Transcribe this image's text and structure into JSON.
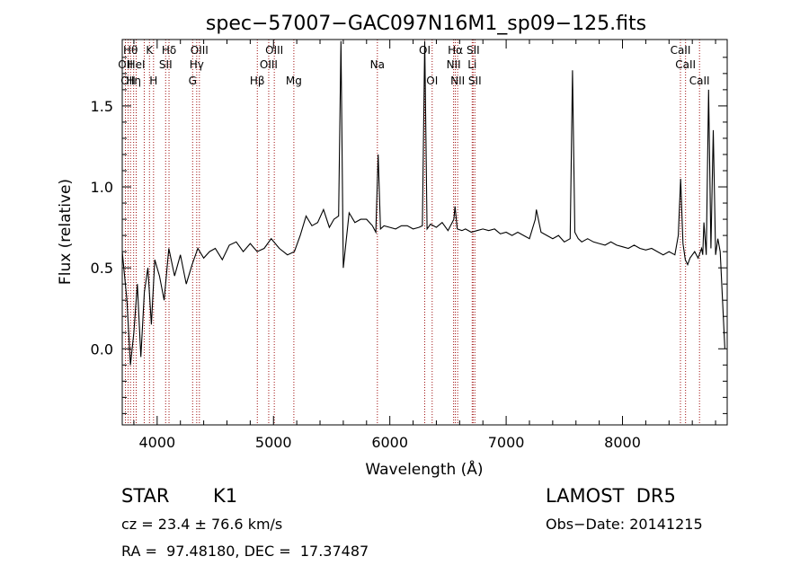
{
  "chart_data": {
    "type": "line",
    "title": "spec−57007−GAC097N16M1_sp09−125.fits",
    "xlabel": "Wavelength (Å)",
    "ylabel": "Flux (relative)",
    "xlim": [
      3700,
      8900
    ],
    "ylim": [
      -0.47,
      1.91
    ],
    "xticks": [
      4000,
      5000,
      6000,
      7000,
      8000
    ],
    "yticks": [
      0.0,
      0.5,
      1.0,
      1.5
    ],
    "ytick_labels": [
      "0.0",
      "0.5",
      "1.0",
      "1.5"
    ],
    "grid": false,
    "series": [
      {
        "color": "#000000",
        "x": [
          3700,
          3740,
          3770,
          3800,
          3830,
          3860,
          3890,
          3920,
          3950,
          3980,
          4020,
          4060,
          4100,
          4150,
          4200,
          4250,
          4300,
          4350,
          4400,
          4450,
          4500,
          4560,
          4620,
          4680,
          4740,
          4800,
          4860,
          4920,
          4980,
          5050,
          5120,
          5180,
          5230,
          5280,
          5330,
          5380,
          5430,
          5480,
          5520,
          5560,
          5580,
          5600,
          5650,
          5700,
          5750,
          5800,
          5850,
          5880,
          5900,
          5920,
          5950,
          6000,
          6050,
          6100,
          6150,
          6200,
          6250,
          6280,
          6300,
          6320,
          6350,
          6400,
          6450,
          6500,
          6550,
          6560,
          6580,
          6620,
          6650,
          6700,
          6750,
          6800,
          6850,
          6900,
          6950,
          7000,
          7050,
          7100,
          7150,
          7200,
          7250,
          7260,
          7300,
          7350,
          7400,
          7450,
          7500,
          7550,
          7570,
          7590,
          7620,
          7650,
          7700,
          7750,
          7800,
          7850,
          7900,
          7950,
          8000,
          8050,
          8100,
          8150,
          8200,
          8250,
          8300,
          8350,
          8400,
          8450,
          8480,
          8500,
          8520,
          8540,
          8560,
          8580,
          8600,
          8620,
          8650,
          8680,
          8690,
          8700,
          8720,
          8740,
          8760,
          8780,
          8800,
          8820,
          8840,
          8860,
          8880
        ],
        "y": [
          0.6,
          0.3,
          -0.1,
          0.1,
          0.4,
          -0.05,
          0.35,
          0.5,
          0.15,
          0.55,
          0.45,
          0.3,
          0.62,
          0.45,
          0.58,
          0.4,
          0.52,
          0.62,
          0.56,
          0.6,
          0.62,
          0.55,
          0.64,
          0.66,
          0.6,
          0.65,
          0.6,
          0.62,
          0.68,
          0.62,
          0.58,
          0.6,
          0.7,
          0.82,
          0.76,
          0.78,
          0.86,
          0.75,
          0.8,
          0.82,
          1.9,
          0.5,
          0.84,
          0.78,
          0.8,
          0.8,
          0.76,
          0.72,
          1.2,
          0.74,
          0.76,
          0.75,
          0.74,
          0.76,
          0.76,
          0.74,
          0.75,
          0.76,
          1.9,
          0.74,
          0.77,
          0.75,
          0.78,
          0.73,
          0.8,
          0.88,
          0.74,
          0.73,
          0.74,
          0.72,
          0.73,
          0.74,
          0.73,
          0.74,
          0.71,
          0.72,
          0.7,
          0.72,
          0.7,
          0.68,
          0.8,
          0.86,
          0.72,
          0.7,
          0.68,
          0.7,
          0.66,
          0.68,
          1.72,
          0.72,
          0.68,
          0.66,
          0.68,
          0.66,
          0.65,
          0.64,
          0.66,
          0.64,
          0.63,
          0.62,
          0.64,
          0.62,
          0.61,
          0.62,
          0.6,
          0.58,
          0.6,
          0.58,
          0.7,
          1.05,
          0.65,
          0.55,
          0.52,
          0.56,
          0.58,
          0.6,
          0.56,
          0.62,
          0.58,
          0.78,
          0.58,
          1.6,
          0.62,
          1.35,
          0.58,
          0.68,
          0.6,
          0.3,
          0.0
        ]
      }
    ],
    "lines": [
      {
        "x": 3727,
        "top": "OII",
        "row": 2
      },
      {
        "x": 3750,
        "top": "OII",
        "row": 3
      },
      {
        "x": 3771,
        "top": "Hθ",
        "row": 1
      },
      {
        "x": 3798,
        "top": "Hη",
        "row": 3
      },
      {
        "x": 3820,
        "top": "HeI",
        "row": 2
      },
      {
        "x": 3889,
        "top": "",
        "row": 0
      },
      {
        "x": 3934,
        "top": "K",
        "row": 1
      },
      {
        "x": 3969,
        "top": "H",
        "row": 3
      },
      {
        "x": 4073,
        "top": "SII",
        "row": 2
      },
      {
        "x": 4102,
        "top": "Hδ",
        "row": 1
      },
      {
        "x": 4305,
        "top": "G",
        "row": 3
      },
      {
        "x": 4340,
        "top": "Hγ",
        "row": 2
      },
      {
        "x": 4363,
        "top": "OIII",
        "row": 1
      },
      {
        "x": 4861,
        "top": "Hβ",
        "row": 3
      },
      {
        "x": 4959,
        "top": "OIII",
        "row": 2
      },
      {
        "x": 5007,
        "top": "OIII",
        "row": 1
      },
      {
        "x": 5175,
        "top": "Mg",
        "row": 3
      },
      {
        "x": 5893,
        "top": "Na",
        "row": 2
      },
      {
        "x": 6300,
        "top": "OI",
        "row": 1
      },
      {
        "x": 6364,
        "top": "OI",
        "row": 3
      },
      {
        "x": 6548,
        "top": "NII",
        "row": 2
      },
      {
        "x": 6563,
        "top": "Hα",
        "row": 1
      },
      {
        "x": 6583,
        "top": "NII",
        "row": 3
      },
      {
        "x": 6708,
        "top": "Li",
        "row": 2
      },
      {
        "x": 6716,
        "top": "SII",
        "row": 1
      },
      {
        "x": 6731,
        "top": "SII",
        "row": 3
      },
      {
        "x": 8498,
        "top": "CaII",
        "row": 1
      },
      {
        "x": 8542,
        "top": "CaII",
        "row": 2
      },
      {
        "x": 8662,
        "top": "CaII",
        "row": 3
      }
    ]
  },
  "info": {
    "object_class": "STAR",
    "subclass": "K1",
    "survey": "LAMOST  DR5",
    "redshift": "cz = 23.4 ± 76.6 km/s",
    "obs_date": "Obs−Date: 20141215",
    "coords": "RA =  97.48180, DEC =  17.37487"
  }
}
